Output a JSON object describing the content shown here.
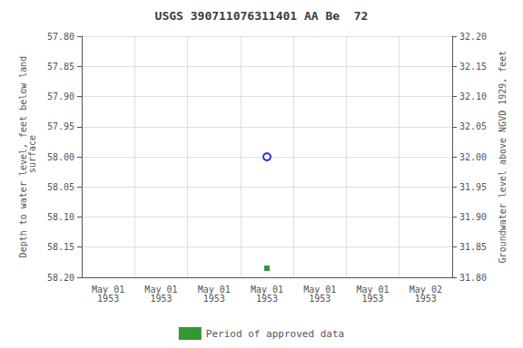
{
  "chart_data": {
    "type": "scatter",
    "title": "USGS 390711076311401 AA Be  72",
    "y_label": "Depth to water level, feet below land\n surface",
    "y2_label": "Groundwater level above NGVD 1929, feet",
    "categories": [
      "May 01\n1953",
      "May 01\n1953",
      "May 01\n1953",
      "May 01\n1953",
      "May 01\n1953",
      "May 01\n1953",
      "May 02\n1953"
    ],
    "ylim": [
      58.2,
      57.8
    ],
    "yticks": [
      {
        "value": 57.8,
        "label": "57.80"
      },
      57.85,
      {
        "value": 57.9,
        "label": "57.90"
      },
      57.95,
      {
        "value": 58.0,
        "label": "58.00"
      },
      58.05,
      {
        "value": 58.1,
        "label": "58.10"
      },
      58.15,
      {
        "value": 58.2,
        "label": "58.20"
      }
    ],
    "y2lim": [
      31.8,
      32.2
    ],
    "y2ticks": [
      {
        "value": 31.8,
        "label": "31.80"
      },
      31.85,
      {
        "value": 31.9,
        "label": "31.90"
      },
      31.95,
      {
        "value": 32.0,
        "label": "32.00"
      },
      32.05,
      {
        "value": 32.1,
        "label": "32.10"
      },
      32.15,
      {
        "value": 32.2,
        "label": "32.20"
      }
    ],
    "grid": true,
    "legend": "bottom",
    "series": [
      {
        "color": "#0000cc",
        "marker": "circle",
        "values": [
          null,
          null,
          null,
          58.0,
          null,
          null,
          null
        ]
      },
      {
        "name": "Period of approved data",
        "color": "#008000",
        "marker": "square",
        "values": [
          null,
          null,
          null,
          58.185,
          null,
          null,
          null
        ]
      }
    ]
  }
}
